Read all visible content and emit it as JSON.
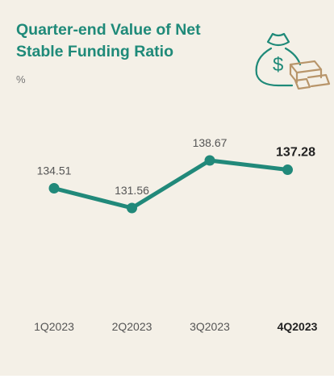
{
  "chart_data": {
    "type": "line",
    "title": "Quarter-end Value of Net Stable Funding Ratio",
    "subtitle": "%",
    "categories": [
      "1Q2023",
      "2Q2023",
      "3Q2023",
      "4Q2023"
    ],
    "values": [
      134.51,
      131.56,
      138.67,
      137.28
    ],
    "color": "#21897a"
  }
}
